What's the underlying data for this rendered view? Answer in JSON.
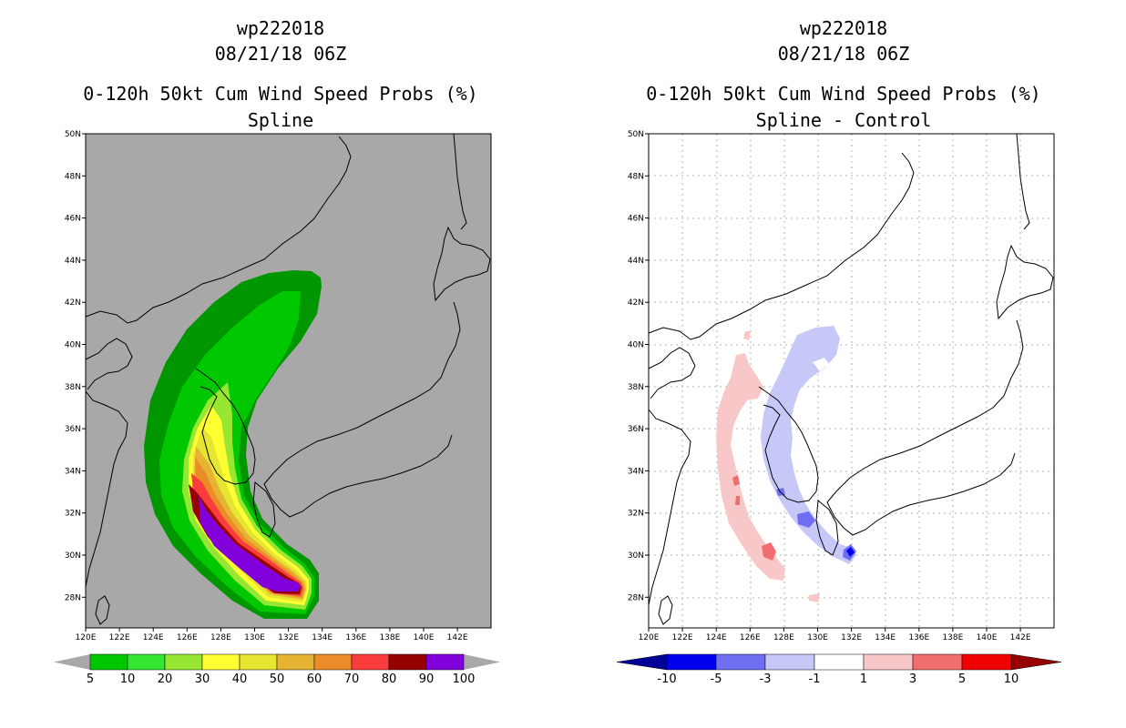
{
  "left_panel": {
    "storm_id": "wp222018",
    "date": "08/21/18 06Z",
    "title": "0-120h 50kt Cum Wind Speed Probs (%)",
    "subtitle": "Spline",
    "lat_labels": [
      "50N",
      "48N",
      "46N",
      "44N",
      "42N",
      "40N",
      "38N",
      "36N",
      "34N",
      "32N",
      "30N",
      "28N"
    ],
    "lon_labels": [
      "120E",
      "122E",
      "124E",
      "126E",
      "128E",
      "130E",
      "132E",
      "134E",
      "136E",
      "138E",
      "140E",
      "142E"
    ],
    "colorbar": {
      "labels": [
        "5",
        "10",
        "20",
        "30",
        "40",
        "50",
        "60",
        "70",
        "80",
        "90",
        "100"
      ],
      "colors": [
        "#009600",
        "#00c800",
        "#32e632",
        "#96e632",
        "#ffff32",
        "#e6e632",
        "#e6b432",
        "#eb8c28",
        "#fa3c3c",
        "#960000",
        "#8200dc"
      ],
      "arrow_color": "#a8a8a8"
    },
    "background_color": "#a8a8a8"
  },
  "right_panel": {
    "storm_id": "wp222018",
    "date": "08/21/18 06Z",
    "title": "0-120h 50kt Cum Wind Speed Probs (%)",
    "subtitle": "Spline - Control",
    "lat_labels": [
      "50N",
      "48N",
      "46N",
      "44N",
      "42N",
      "40N",
      "38N",
      "36N",
      "34N",
      "32N",
      "30N",
      "28N"
    ],
    "lon_labels": [
      "120E",
      "122E",
      "124E",
      "126E",
      "128E",
      "130E",
      "132E",
      "134E",
      "136E",
      "138E",
      "140E",
      "142E"
    ],
    "colorbar": {
      "labels": [
        "-10",
        "-5",
        "-3",
        "-1",
        "1",
        "3",
        "5",
        "10"
      ],
      "colors": [
        "#000096",
        "#0000f0",
        "#6e6ef0",
        "#c8c8f8",
        "#ffffff",
        "#f8c8c8",
        "#f06e6e",
        "#f00000",
        "#960000"
      ]
    },
    "background_color": "#ffffff"
  }
}
